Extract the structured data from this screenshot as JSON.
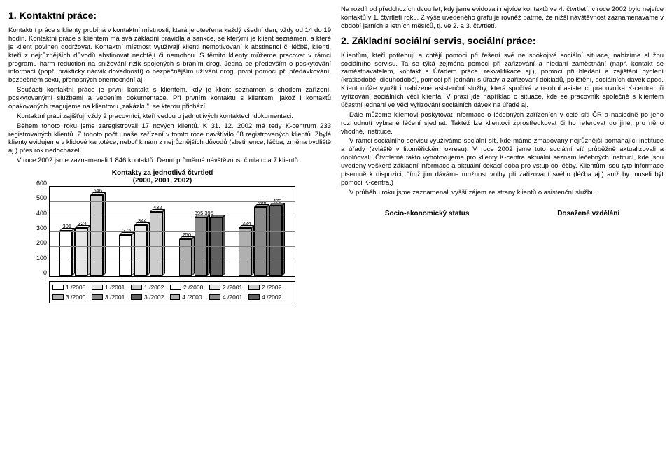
{
  "left": {
    "title": "1.  Kontaktní práce:",
    "paragraphs": [
      "Kontaktní práce s klienty probíhá v kontaktní místnosti, která je otevřena každý všední den, vždy od 14 do 19 hodin. Kontaktní práce s klientem má svá základní pravidla a sankce, se kterými je klient seznámen, a které je klient povinen dodržovat. Kontaktní místnost využívají klienti nemotivovaní k abstinenci či léčbě, klienti, kteří z nejrůznějších důvodů abstinovat nechtějí či nemohou. S těmito klienty můžeme pracovat v rámci programu harm reduction na snižování rizik spojených s braním drog. Jedná se především o poskytování informací (popř. praktický nácvik dovedností) o bezpečnějším užívání drog, první pomoci při předávkování, bezpečném sexu, přenosných onemocnění aj.",
      "Součástí kontaktní práce je první kontakt s klientem, kdy je klient seznámen s chodem zařízení, poskytovanými službami a vedením dokumentace. Při prvním kontaktu s klientem, jakož i kontaktů opakovaných reagujeme na klientovu „zakázku\", se kterou přichází.",
      "Kontaktní práci zajišťují vždy 2 pracovníci, kteří vedou o jednotlivých kontaktech dokumentaci.",
      "Během tohoto roku jsme zaregistrovali 17 nových klientů. K 31. 12. 2002 má tedy K-centrum 233 registrovaných klientů. Z tohoto počtu naše zařízení v tomto roce navštívilo 68 registrovaných klientů. Zbylé klienty evidujeme v klidové kartotéce, neboť k nám z nejrůznějších důvodů (abstinence, léčba, změna bydliště aj.) přes rok nedocházeli.",
      "V roce 2002 jsme zaznamenali 1.846 kontaktů. Denní průměrná návštěvnost činila cca 7 klientů."
    ]
  },
  "right": {
    "intro": "Na rozdíl od předchozích dvou let, kdy jsme evidovali nejvíce kontaktů ve 4. čtvrtletí, v roce 2002 bylo nejvíce kontaktů v 1. čtvrtletí roku. Z výše uvedeného grafu je rovněž patrné, že nižší návštěvnost zaznamenáváme v období jarních a letních měsíců, tj. ve 2. a 3. čtvrtletí.",
    "title": "2.  Základní sociální servis, sociální práce:",
    "paragraphs": [
      "Klientům, kteří potřebují a chtějí pomoci při řešení své neuspokojivé sociální situace, nabízíme službu sociálního servisu. Ta se týká zejména pomoci při zařizování a hledání zaměstnání (např. kontakt se zaměstnavatelem, kontakt s Úřadem práce, rekvalifikace aj.), pomoci při hledání a zajištění bydlení (krátkodobé, dlouhodobé), pomoci při jednání s úřady a zařizování dokladů, pojištění, sociálních dávek apod. Klient může využít i nabízené asistenční služby, která spočívá v osobní asistenci pracovníka K-centra při vyřizování sociálních věcí klienta. V praxi jde například o situace, kde se pracovník společně s klientem účastní jednání ve věci vyřizování sociálních dávek na úřadě aj.",
      "Dále můžeme klientovi poskytovat informace o léčebných zařízeních v celé síti ČR a následně po jeho rozhodnutí vybrané léčení sjednat. Taktéž lze klientovi zprostředkovat či ho referovat do jiné, pro něho vhodné, instituce.",
      "V rámci sociálního servisu využíváme sociální síť, kde máme zmapovány nejrůznější pomáhající instituce a úřady (zvláště v litoměřickém okresu). V roce 2002 jsme tuto sociální síť průběžně aktualizovali a doplňovali. Čtvrtletně takto vyhotovujeme pro klienty K-centra aktuální seznam léčebných institucí, kde jsou uvedeny veškeré základní informace a aktuální čekací doba pro vstup do léčby. Klientům jsou tyto informace písemně k dispozici, čímž jim dáváme možnost volby při zařizování svého (léčba aj.) aniž by museli být pomoci K-centra.)",
      "V průběhu roku jsme zaznamenali vyšší zájem ze strany klientů o asistenční službu."
    ],
    "bottom_headings": [
      "Socio-ekonomický status",
      "Dosažené vzdělání"
    ]
  },
  "chart": {
    "title": "Kontakty za jednotlivá čtvrtletí\n(2000, 2001, 2002)",
    "y_max": 600,
    "y_ticks": [
      0,
      100,
      200,
      300,
      400,
      500,
      600
    ],
    "series_labels": [
      "1./2000",
      "1./2001",
      "1./2002",
      "2./2000",
      "2./2001",
      "2./2002",
      "3./2000",
      "3./2001",
      "3./2002",
      "4./2000.",
      "4./2001",
      "4./2002"
    ],
    "series_colors": [
      "#ffffff",
      "#e6e6e6",
      "#cccccc",
      "#ffffff",
      "#e6e6e6",
      "#cccccc",
      "#b0b0b0",
      "#8a8a8a",
      "#606060",
      "#b0b0b0",
      "#8a8a8a",
      "#606060"
    ],
    "groups": [
      {
        "values": [
          305,
          324,
          546
        ]
      },
      {
        "values": [
          275,
          344,
          432
        ]
      },
      {
        "values": [
          250,
          395,
          395
        ]
      },
      {
        "values": [
          324,
          466,
          473
        ]
      }
    ],
    "group_labels": [
      [
        "305",
        "324",
        "546"
      ],
      [
        "275",
        "344",
        "432"
      ],
      [
        "250",
        "395 395",
        ""
      ],
      [
        "324",
        "466",
        "473"
      ]
    ],
    "group_color_indices": [
      [
        0,
        1,
        2
      ],
      [
        3,
        4,
        5
      ],
      [
        6,
        7,
        8
      ],
      [
        9,
        10,
        11
      ]
    ]
  }
}
